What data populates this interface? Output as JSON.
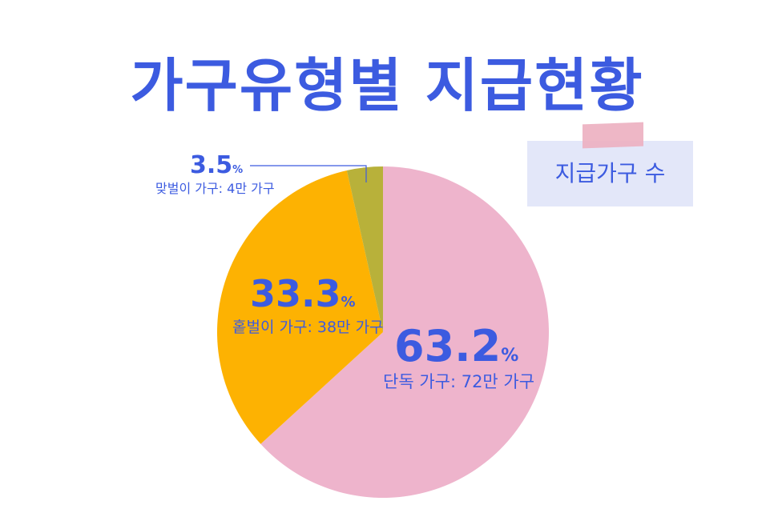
{
  "title": "가구유형별 지급현황",
  "legend": {
    "label": "지급가구 수"
  },
  "colors": {
    "accent": "#3c5be0",
    "single": "#eeb4cc",
    "single_parent": "#fdb202",
    "dual_income": "#b8b13a"
  },
  "chart_data": {
    "type": "pie",
    "title": "가구유형별 지급현황",
    "slices": [
      {
        "pct_value": "63.2",
        "pct_unit": "%",
        "value": 63.2,
        "label": "단독 가구: 72만 가구",
        "color": "#eeb4cc"
      },
      {
        "pct_value": "33.3",
        "pct_unit": "%",
        "value": 33.3,
        "label": "홑벌이 가구: 38만 가구",
        "color": "#fdb202"
      },
      {
        "pct_value": "3.5",
        "pct_unit": "%",
        "value": 3.5,
        "label": "맞벌이 가구:  4만 가구",
        "color": "#b8b13a"
      }
    ]
  }
}
